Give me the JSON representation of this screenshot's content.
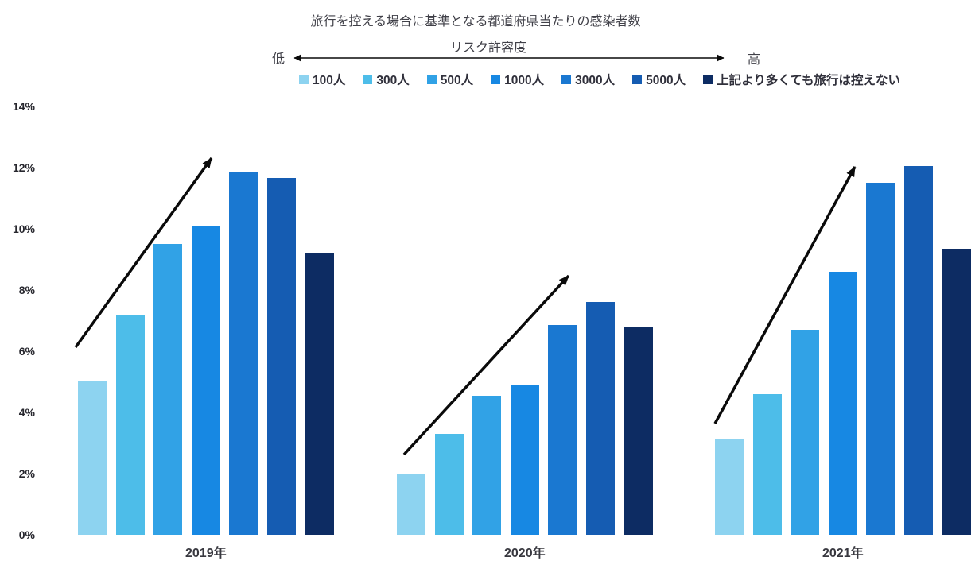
{
  "header": {
    "title": "旅行を控える場合に基準となる都道府県当たりの感染者数",
    "axis_label": "リスク許容度",
    "low_label": "低",
    "high_label": "高"
  },
  "chart_data": {
    "type": "bar",
    "title": "旅行を控える場合に基準となる都道府県当たりの感染者数",
    "subtitle": "リスク許容度 (低 → 高)",
    "categories": [
      "2019年",
      "2020年",
      "2021年"
    ],
    "series": [
      {
        "name": "100人",
        "color": "#8DD3F0",
        "values": [
          5.05,
          2.0,
          3.15
        ]
      },
      {
        "name": "300人",
        "color": "#4DBDE9",
        "values": [
          7.2,
          3.3,
          4.6
        ]
      },
      {
        "name": "500人",
        "color": "#31A2E6",
        "values": [
          9.5,
          4.55,
          6.7
        ]
      },
      {
        "name": "1000人",
        "color": "#1788E3",
        "values": [
          10.1,
          4.9,
          8.6
        ]
      },
      {
        "name": "3000人",
        "color": "#1A78D1",
        "values": [
          11.85,
          6.85,
          11.5
        ]
      },
      {
        "name": "5000人",
        "color": "#155CB2",
        "values": [
          11.65,
          7.6,
          12.05
        ]
      },
      {
        "name": "上記より多くても旅行は控えない",
        "color": "#0D2C63",
        "values": [
          9.2,
          6.8,
          9.35
        ]
      }
    ],
    "xlabel": "",
    "ylabel": "",
    "ylim": [
      0,
      14
    ],
    "yticks": [
      {
        "value": 0,
        "label": "0%"
      },
      {
        "value": 2,
        "label": "2%"
      },
      {
        "value": 4,
        "label": "4%"
      },
      {
        "value": 6,
        "label": "6%"
      },
      {
        "value": 8,
        "label": "8%"
      },
      {
        "value": 10,
        "label": "10%"
      },
      {
        "value": 12,
        "label": "12%"
      },
      {
        "value": 14,
        "label": "14%"
      }
    ],
    "grid": false,
    "legend_position": "top",
    "annotations": [
      {
        "type": "trend-arrow",
        "group": "2019年",
        "direction": "up-right"
      },
      {
        "type": "trend-arrow",
        "group": "2020年",
        "direction": "up-right"
      },
      {
        "type": "trend-arrow",
        "group": "2021年",
        "direction": "up-right"
      },
      {
        "type": "double-arrow",
        "label": "リスク許容度",
        "from": "低",
        "to": "高"
      }
    ]
  }
}
